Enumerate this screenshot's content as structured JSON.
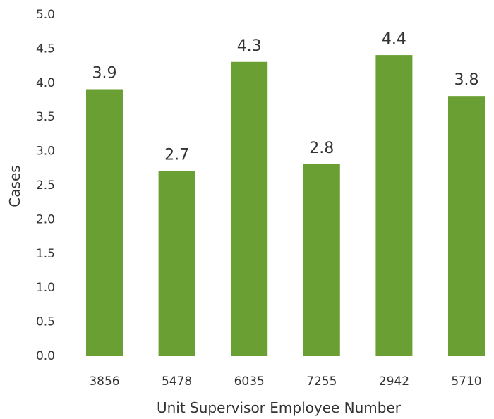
{
  "chart_data": {
    "type": "bar",
    "title": "",
    "xlabel": "Unit Supervisor Employee Number",
    "ylabel": "Cases",
    "categories": [
      "3856",
      "5478",
      "6035",
      "7255",
      "2942",
      "5710"
    ],
    "values": [
      3.9,
      2.7,
      4.3,
      2.8,
      4.4,
      3.8
    ],
    "data_labels": [
      "3.9",
      "2.7",
      "4.3",
      "2.8",
      "4.4",
      "3.8"
    ],
    "y_ticks": [
      "0.0",
      "0.5",
      "1.0",
      "1.5",
      "2.0",
      "2.5",
      "3.0",
      "3.5",
      "4.0",
      "4.5",
      "5.0"
    ],
    "ylim": [
      0,
      5
    ],
    "grid": false,
    "legend": "none",
    "bar_color": "#6aa033"
  }
}
